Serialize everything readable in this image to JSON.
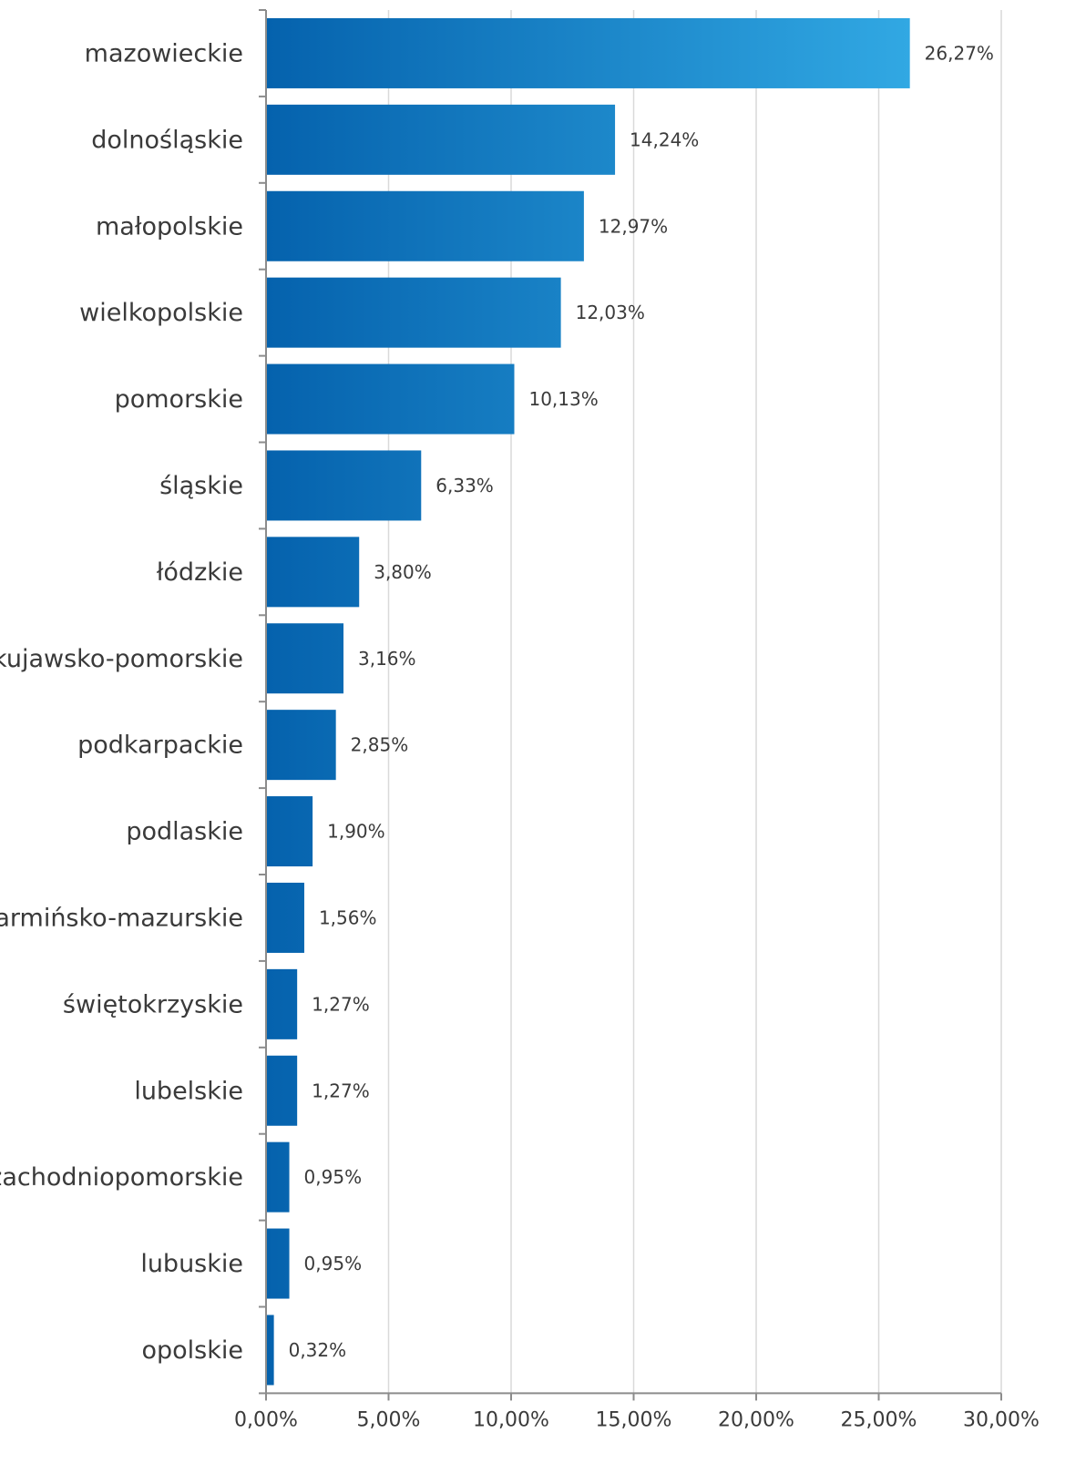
{
  "chart_data": {
    "type": "bar",
    "orientation": "horizontal",
    "categories": [
      "mazowieckie",
      "dolnośląskie",
      "małopolskie",
      "wielkopolskie",
      "pomorskie",
      "śląskie",
      "łódzkie",
      "kujawsko-pomorskie",
      "podkarpackie",
      "podlaskie",
      "warmińsko-mazurskie",
      "świętokrzyskie",
      "lubelskie",
      "zachodniopomorskie",
      "lubuskie",
      "opolskie"
    ],
    "values": [
      26.27,
      14.24,
      12.97,
      12.03,
      10.13,
      6.33,
      3.8,
      3.16,
      2.85,
      1.9,
      1.56,
      1.27,
      1.27,
      0.95,
      0.95,
      0.32
    ],
    "value_labels": [
      "26,27%",
      "14,24%",
      "12,97%",
      "12,03%",
      "10,13%",
      "6,33%",
      "3,80%",
      "3,16%",
      "2,85%",
      "1,90%",
      "1,56%",
      "1,27%",
      "1,27%",
      "0,95%",
      "0,95%",
      "0,32%"
    ],
    "xlim": [
      0,
      30
    ],
    "xticks": [
      0,
      5,
      10,
      15,
      20,
      25,
      30
    ],
    "xtick_labels": [
      "0,00%",
      "5,00%",
      "10,00%",
      "15,00%",
      "20,00%",
      "25,00%",
      "30,00%"
    ],
    "grid": "vertical",
    "colors": {
      "bar_dark": "#0562ad",
      "bar_light": "#31a8e3"
    }
  }
}
